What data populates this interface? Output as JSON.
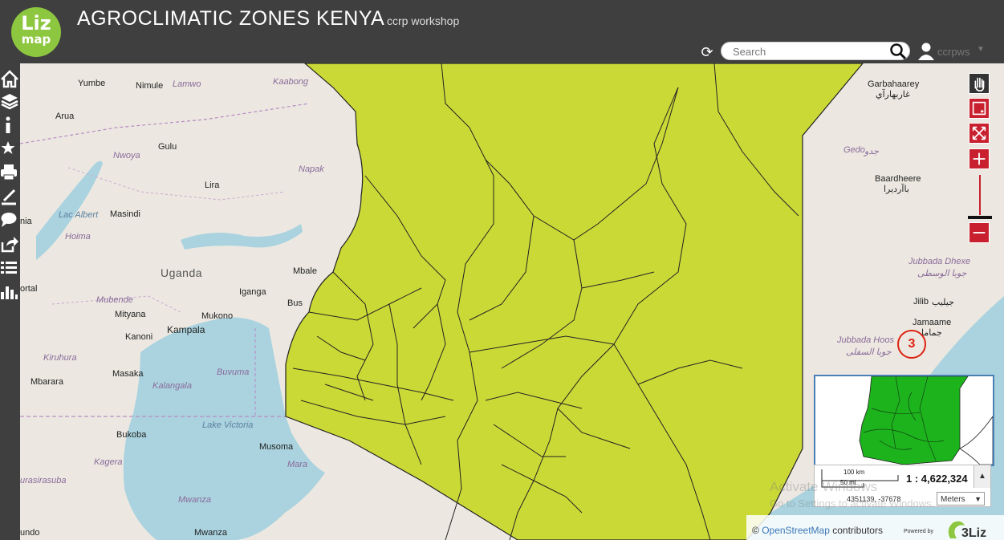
{
  "header": {
    "logo_top": "Liz",
    "logo_bottom": "map",
    "title": "AGROCLIMATIC ZONES KENYA",
    "subtitle": "ccrp workshop",
    "search_placeholder": "Search",
    "user": "ccrpws"
  },
  "sidebar": {
    "items": [
      "home-icon",
      "layers-icon",
      "info-icon",
      "star-icon",
      "print-icon",
      "measure-icon",
      "comment-icon",
      "share-icon",
      "list-icon",
      "chart-icon"
    ]
  },
  "map": {
    "places": {
      "yumbe": "Yumbe",
      "nimule": "Nimule",
      "lamwo": "Lamwo",
      "kaabong": "Kaabong",
      "arua": "Arua",
      "gulu": "Gulu",
      "nwoya": "Nwoya",
      "napak": "Napak",
      "lira": "Lira",
      "lake_albert": "Lac Albert",
      "masindi": "Masindi",
      "hoima": "Hoima",
      "uganda": "Uganda",
      "mbale": "Mbale",
      "portal": "ortal",
      "nia": "nia",
      "iganga": "Iganga",
      "bus": "Bus",
      "mubende": "Mubende",
      "mityana": "Mityana",
      "mukono": "Mukono",
      "kampala": "Kampala",
      "kanoni": "Kanoni",
      "kiruhura": "Kiruhura",
      "buvuma": "Buvuma",
      "masaka": "Masaka",
      "kalangala": "Kalangala",
      "mbarara": "Mbarara",
      "lake_victoria": "Lake Victoria",
      "bukoba": "Bukoba",
      "musoma": "Musoma",
      "kagera": "Kagera",
      "mara": "Mara",
      "urasirasuba": "urasirasuba",
      "mwanza_region": "Mwanza",
      "undo": "undo",
      "mwanza": "Mwanza",
      "garbahaarey": "Garbahaarey",
      "garbahaarey_ar": "غاربهارآي",
      "gedo": "Gedo",
      "gedo_ar": "جدو",
      "baardheere": "Baardheere",
      "baardheere_ar": "باآرديرا",
      "jubbada_dhexe": "Jubbada Dhexe",
      "jubbada_dhexe_ar": "جوبا الوسطى",
      "jilib": "Jilib",
      "jilib_ar": "جيليب",
      "jamaame": "Jamaame",
      "jamaame_ar": "جماما",
      "jubbada_hoose": "Jubbada Hoos",
      "jubbada_hoose_ar": "جوبا السفلى"
    },
    "marker_label": "3",
    "scale": {
      "km": "100 km",
      "mi": "50 mi",
      "ratio": "1 : 4,622,324",
      "coords": "4351139, -37678",
      "units": "Meters"
    },
    "attribution": {
      "prefix": "©",
      "osm": "OpenStreetMap",
      "suffix": "contributors",
      "powered": "Powered by"
    },
    "watermark_line1": "Activate Windows",
    "watermark_line2": "Go to Settings to activate Windows."
  },
  "colors": {
    "header_bg": "#3f3f3f",
    "kenya_fill": "#cbd937",
    "accent_red": "#c8202f",
    "overview_green": "#1db31d",
    "water": "#aad3df"
  }
}
